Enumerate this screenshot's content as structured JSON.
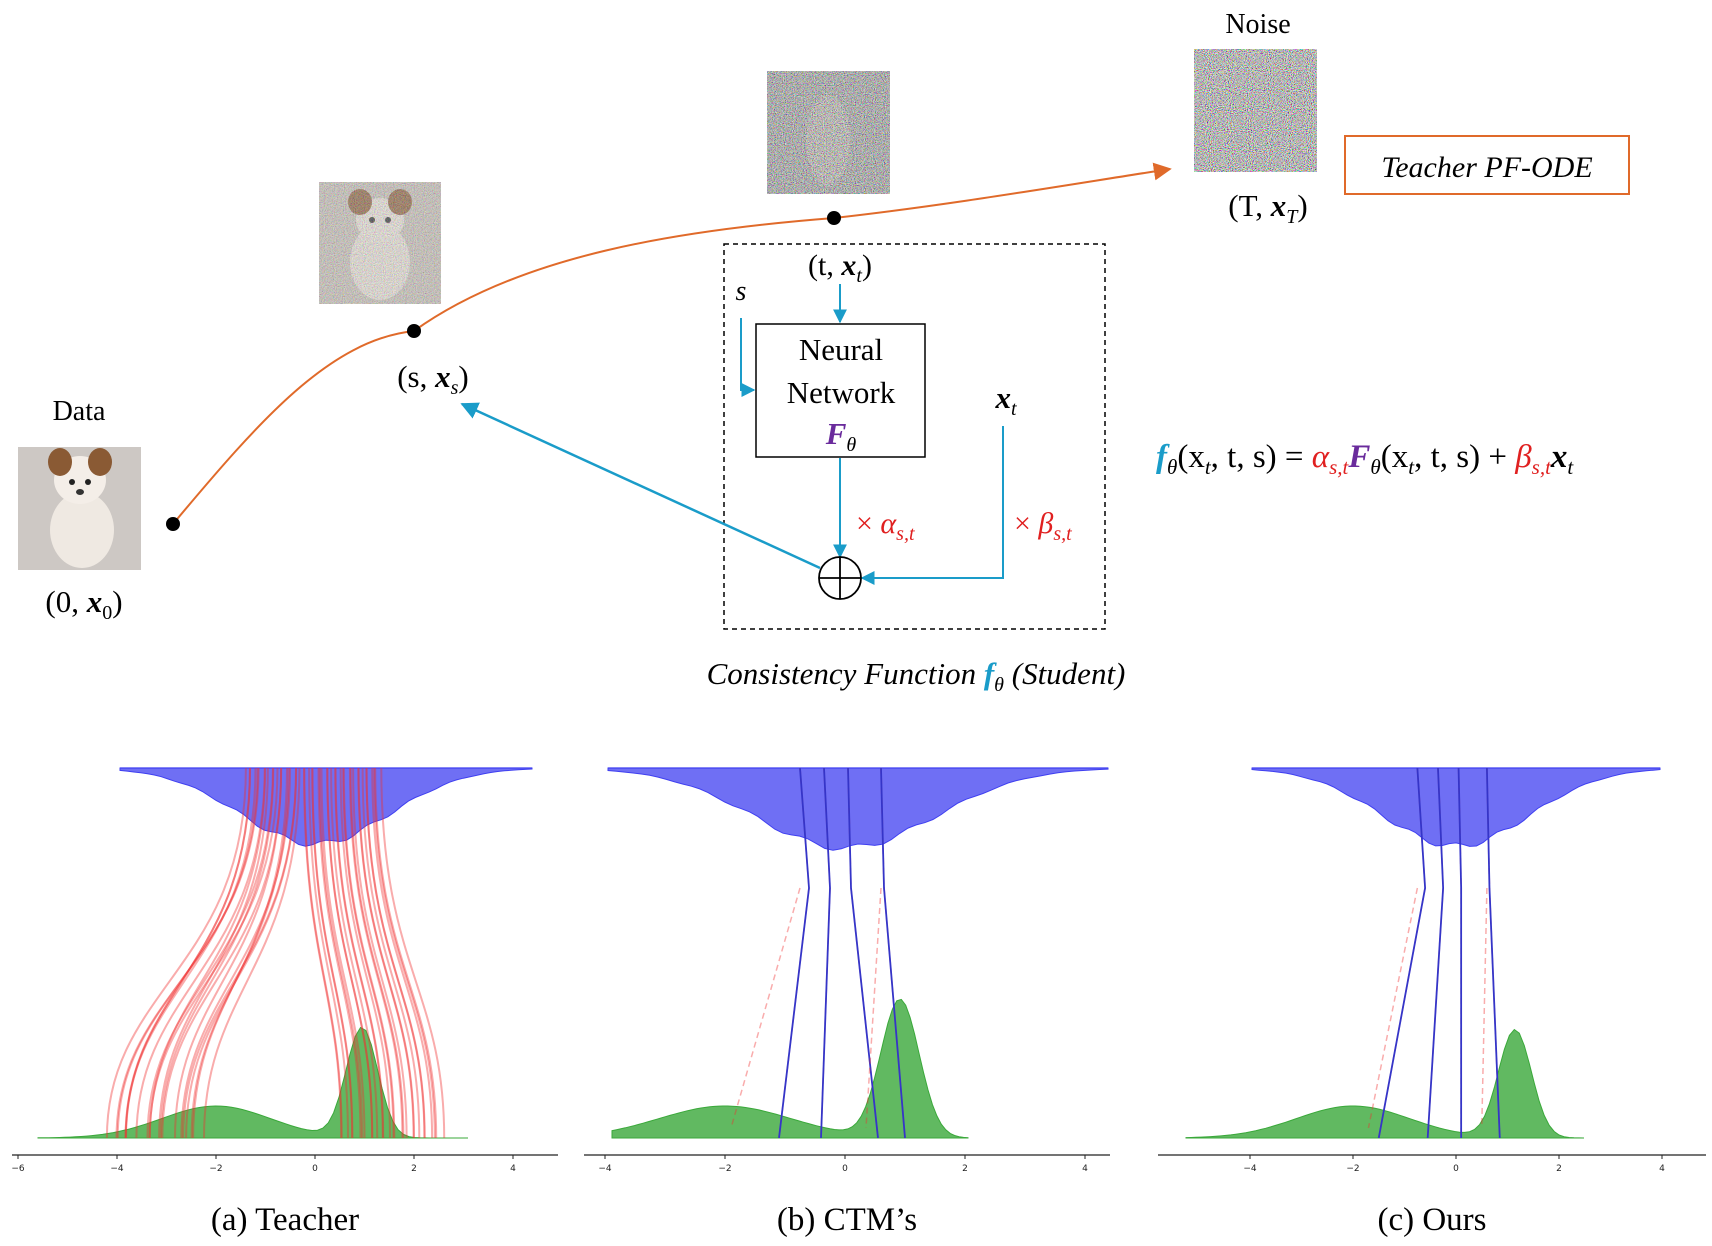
{
  "top": {
    "label_data": "Data",
    "label_noise": "Noise",
    "pt_0": {
      "open": "(0, ",
      "var": "x",
      "sub": "0",
      "close": ")"
    },
    "pt_s": {
      "open": "(s, ",
      "var": "x",
      "sub": "s",
      "close": ")"
    },
    "pt_T": {
      "open": "(T, ",
      "var": "x",
      "sub": "T",
      "close": ")"
    },
    "teacher_box": "Teacher PF-ODE",
    "box_input_t": {
      "open": "(t, ",
      "var": "x",
      "sub": "t",
      "close": ")"
    },
    "box_input_s": "s",
    "nn_line1": "Neural",
    "nn_line2": "Network",
    "nn_F": "F",
    "nn_F_sub": "θ",
    "xt_label": {
      "var": "x",
      "sub": "t"
    },
    "alpha_label": {
      "times": "× ",
      "sym": "α",
      "sub": "s,t"
    },
    "beta_label": {
      "times": "× ",
      "sym": "β",
      "sub": "s,t"
    },
    "caption_pre": "Consistency Function ",
    "caption_f": "f",
    "caption_f_sub": "θ",
    "caption_post": " (Student)",
    "equation": {
      "f": "f",
      "f_sub": "θ",
      "args1": "(x",
      "args1_sub": "t",
      "args1_rest": ", t, s) = ",
      "alpha": "α",
      "alpha_sub": "s,t",
      "F": "F",
      "F_sub": "θ",
      "args2": "(x",
      "args2_sub": "t",
      "args2_rest": ", t, s) + ",
      "beta": "β",
      "beta_sub": "s,t",
      "x": "x",
      "x_sub": "t"
    }
  },
  "colors": {
    "teacher_path": "#e06a2a",
    "student_arrow": "#1a9cc9",
    "coef_red": "#e02020",
    "nn_purple": "#6a2b9c",
    "noise_blue": "#3f3ff0",
    "data_green": "#3aa83a",
    "traj_red": "#f03030",
    "traj_blue": "#3535c8"
  },
  "panels": [
    {
      "caption": "(a) Teacher",
      "ticks": [
        "−6",
        "−4",
        "−2",
        "0",
        "2",
        "4"
      ]
    },
    {
      "caption": "(b) CTM’s",
      "ticks": [
        "−4",
        "−2",
        "0",
        "2",
        "4"
      ]
    },
    {
      "caption": "(c) Ours",
      "ticks": [
        "−4",
        "−2",
        "0",
        "2",
        "4"
      ]
    }
  ]
}
